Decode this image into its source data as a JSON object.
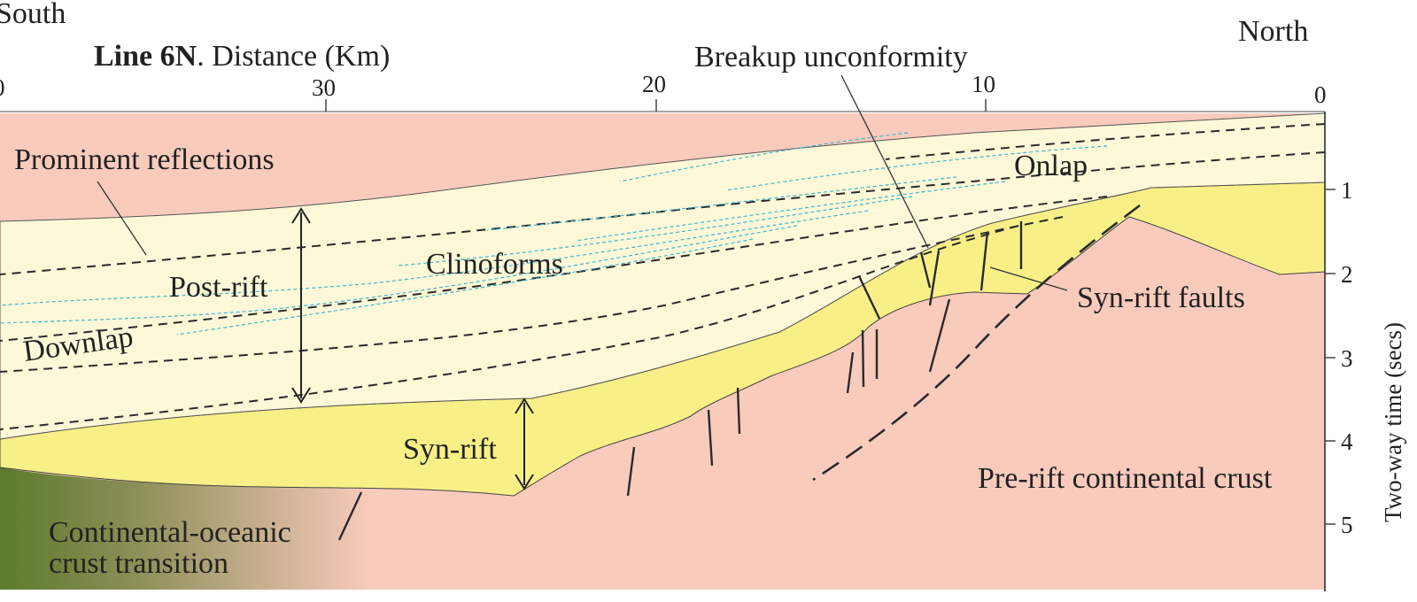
{
  "title": {
    "line_bold": "Line 6N",
    "rest": ". Distance (Km)"
  },
  "directions": {
    "left": "South",
    "right": "North"
  },
  "top_axis": {
    "ticks": [
      "0",
      "30",
      "20",
      "10",
      "0"
    ]
  },
  "right_axis": {
    "ticks": [
      "1",
      "2",
      "3",
      "4",
      "5"
    ],
    "label": "Two-way time (secs)"
  },
  "labels": {
    "prominent_reflections": "Prominent reflections",
    "breakup_unconformity": "Breakup unconformity",
    "onlap": "Onlap",
    "clinoforms": "Clinoforms",
    "post_rift": "Post-rift",
    "downlap": "Downlap",
    "syn_rift": "Syn-rift",
    "syn_rift_faults": "Syn-rift faults",
    "pre_rift": "Pre-rift continental crust",
    "cot_line1": "Continental-oceanic",
    "cot_line2": "crust transition"
  },
  "colors": {
    "post_rift_fill": "#fdf8d8",
    "syn_rift_fill": "#f8f087",
    "pre_rift_fill": "#f9cbbd",
    "oceanic_transition": "#5c7b2c",
    "reflections": "#3fb6cf"
  }
}
